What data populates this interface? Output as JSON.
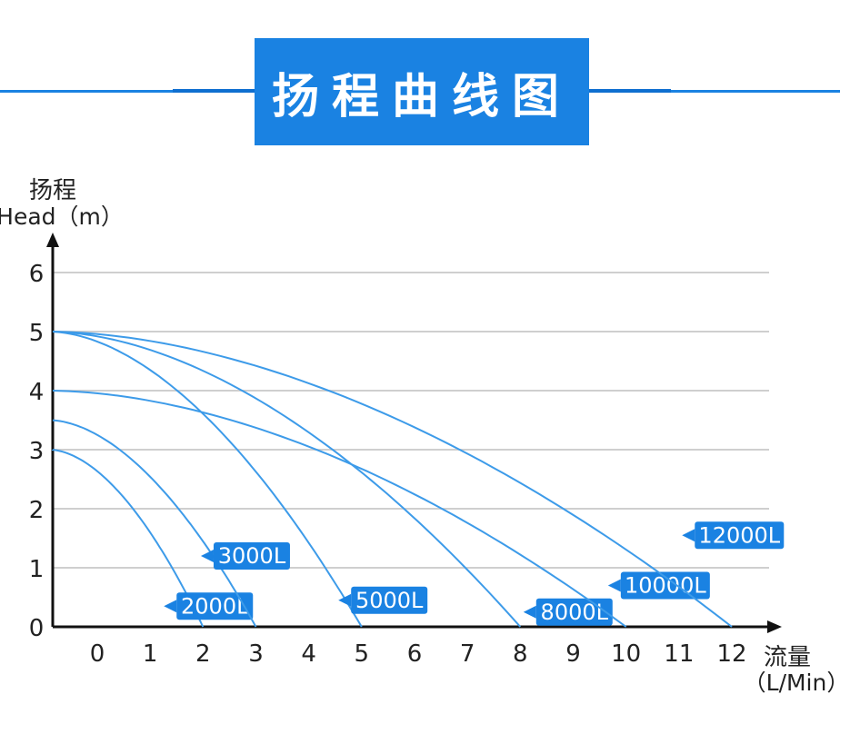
{
  "header": {
    "title": "扬程曲线图"
  },
  "colors": {
    "accent": "#1a82e2",
    "curve": "#3d9be9",
    "grid": "#cfcfcf"
  },
  "chart_data": {
    "type": "line",
    "ylabel_cn": "扬程",
    "ylabel_en": "Head（m）",
    "xlabel_cn": "流量",
    "xlabel_en": "（L/Min）",
    "xlim": [
      -0.9,
      12.9
    ],
    "ylim": [
      0,
      6.5
    ],
    "x_ticks": [
      "0",
      "1",
      "2",
      "3",
      "4",
      "5",
      "6",
      "7",
      "8",
      "9",
      "10",
      "11",
      "12"
    ],
    "y_ticks": [
      "0",
      "1",
      "2",
      "3",
      "4",
      "5",
      "6"
    ],
    "series": [
      {
        "name": "2000L",
        "x": [
          -0.9,
          2
        ],
        "y": [
          3.0,
          0
        ],
        "label_at": [
          1.5,
          0.35
        ]
      },
      {
        "name": "3000L",
        "x": [
          -0.9,
          3
        ],
        "y": [
          3.5,
          0
        ],
        "label_at": [
          2.2,
          1.2
        ]
      },
      {
        "name": "5000L",
        "x": [
          -0.9,
          5
        ],
        "y": [
          5.0,
          0
        ],
        "label_at": [
          4.8,
          0.45
        ]
      },
      {
        "name": "8000L",
        "x": [
          -0.9,
          8
        ],
        "y": [
          5.0,
          0
        ],
        "label_at": [
          8.3,
          0.25
        ]
      },
      {
        "name": "10000L",
        "x": [
          -0.9,
          10
        ],
        "y": [
          4.0,
          0
        ],
        "label_at": [
          9.9,
          0.7
        ]
      },
      {
        "name": "12000L",
        "x": [
          -0.9,
          12
        ],
        "y": [
          5.0,
          0
        ],
        "label_at": [
          11.3,
          1.55
        ]
      }
    ]
  }
}
